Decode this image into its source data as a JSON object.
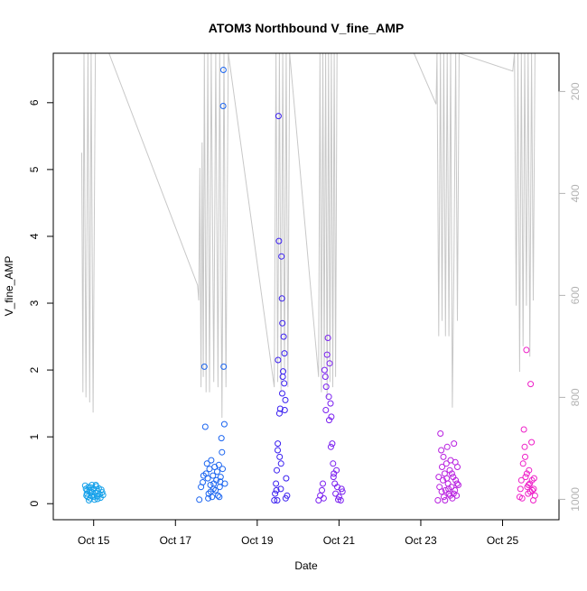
{
  "chart_data": {
    "type": "scatter",
    "title": "ATOM3 Northbound V_fine_AMP",
    "xlabel": "Date",
    "ylabel": "V_fine_AMP",
    "xlim": [
      "2015-10-14T00:18",
      "2015-10-26T09:07"
    ],
    "ylim": [
      -0.24,
      6.74
    ],
    "x_ticks": [
      "Oct 15",
      "Oct 17",
      "Oct 19",
      "Oct 21",
      "Oct 23",
      "Oct 25"
    ],
    "y_ticks": [
      "0",
      "1",
      "2",
      "3",
      "4",
      "5",
      "6"
    ],
    "grid": false,
    "right_axis": {
      "reversed": true,
      "lim": [
        1040,
        125
      ],
      "ticks": [
        "200",
        "400",
        "600",
        "800",
        "1000"
      ],
      "color": "#b3b3b3"
    },
    "marker": "open-circle",
    "color_ramp": [
      "#00a5ff",
      "#1f58ff",
      "#3a1ff2",
      "#7a1ff2",
      "#c21fe0",
      "#ff1fbe"
    ],
    "depth_line_color": "#c8c8c8",
    "series": [
      {
        "color": "#16a1ea",
        "points": [
          [
            "2015-10-14T19:00",
            0.27
          ],
          [
            "2015-10-14T19:30",
            0.22
          ],
          [
            "2015-10-14T20:00",
            0.15
          ],
          [
            "2015-10-14T20:30",
            0.1
          ],
          [
            "2015-10-14T21:00",
            0.25
          ],
          [
            "2015-10-14T21:30",
            0.2
          ],
          [
            "2015-10-14T22:00",
            0.08
          ],
          [
            "2015-10-14T22:30",
            0.18
          ],
          [
            "2015-10-14T23:00",
            0.28
          ],
          [
            "2015-10-14T23:30",
            0.12
          ],
          [
            "2015-10-15T00:00",
            0.22
          ],
          [
            "2015-10-15T00:30",
            0.06
          ],
          [
            "2015-10-15T01:00",
            0.16
          ],
          [
            "2015-10-15T01:30",
            0.26
          ],
          [
            "2015-10-15T02:00",
            0.11
          ],
          [
            "2015-10-15T02:30",
            0.19
          ],
          [
            "2015-10-15T03:00",
            0.23
          ],
          [
            "2015-10-15T03:30",
            0.14
          ],
          [
            "2015-10-15T04:00",
            0.09
          ],
          [
            "2015-10-15T04:30",
            0.21
          ],
          [
            "2015-10-15T05:00",
            0.17
          ],
          [
            "2015-10-15T05:30",
            0.13
          ],
          [
            "2015-10-14T19:45",
            0.12
          ],
          [
            "2015-10-14T20:15",
            0.2
          ],
          [
            "2015-10-14T21:15",
            0.05
          ],
          [
            "2015-10-14T22:15",
            0.24
          ],
          [
            "2015-10-14T23:15",
            0.17
          ],
          [
            "2015-10-15T00:15",
            0.1
          ],
          [
            "2015-10-15T01:15",
            0.28
          ],
          [
            "2015-10-15T02:15",
            0.07
          ]
        ]
      },
      {
        "color": "#1a64f0",
        "points": [
          [
            "2015-10-17T14:00",
            0.06
          ],
          [
            "2015-10-17T15:00",
            0.25
          ],
          [
            "2015-10-17T16:00",
            0.32
          ],
          [
            "2015-10-17T17:00",
            2.05
          ],
          [
            "2015-10-17T17:30",
            1.15
          ],
          [
            "2015-10-17T18:00",
            0.45
          ],
          [
            "2015-10-17T18:30",
            0.6
          ],
          [
            "2015-10-17T19:00",
            0.38
          ],
          [
            "2015-10-17T19:30",
            0.15
          ],
          [
            "2015-10-17T20:00",
            0.52
          ],
          [
            "2015-10-17T20:30",
            0.28
          ],
          [
            "2015-10-17T21:00",
            0.65
          ],
          [
            "2015-10-17T21:30",
            0.1
          ],
          [
            "2015-10-17T22:00",
            0.42
          ],
          [
            "2015-10-17T22:30",
            0.3
          ],
          [
            "2015-10-17T23:00",
            0.55
          ],
          [
            "2015-10-17T23:30",
            0.2
          ],
          [
            "2015-10-18T00:00",
            0.35
          ],
          [
            "2015-10-18T00:30",
            0.48
          ],
          [
            "2015-10-18T01:00",
            0.12
          ],
          [
            "2015-10-18T01:30",
            0.58
          ],
          [
            "2015-10-18T02:00",
            0.25
          ],
          [
            "2015-10-18T02:30",
            0.4
          ],
          [
            "2015-10-18T03:00",
            0.98
          ],
          [
            "2015-10-18T03:20",
            0.77
          ],
          [
            "2015-10-18T03:40",
            0.52
          ],
          [
            "2015-10-18T04:00",
            5.95
          ],
          [
            "2015-10-18T04:10",
            6.49
          ],
          [
            "2015-10-18T04:20",
            2.05
          ],
          [
            "2015-10-18T04:40",
            1.19
          ],
          [
            "2015-10-18T05:00",
            0.3
          ],
          [
            "2015-10-17T16:30",
            0.42
          ],
          [
            "2015-10-17T19:15",
            0.08
          ],
          [
            "2015-10-17T20:45",
            0.18
          ],
          [
            "2015-10-17T22:15",
            0.22
          ],
          [
            "2015-10-18T01:45",
            0.1
          ],
          [
            "2015-10-18T02:15",
            0.33
          ]
        ]
      },
      {
        "color": "#3a1ff0",
        "points": [
          [
            "2015-10-19T10:00",
            0.05
          ],
          [
            "2015-10-19T10:30",
            0.15
          ],
          [
            "2015-10-19T11:00",
            0.3
          ],
          [
            "2015-10-19T11:30",
            0.5
          ],
          [
            "2015-10-19T12:00",
            0.8
          ],
          [
            "2015-10-19T12:15",
            2.15
          ],
          [
            "2015-10-19T12:30",
            5.8
          ],
          [
            "2015-10-19T12:45",
            3.93
          ],
          [
            "2015-10-19T13:00",
            1.35
          ],
          [
            "2015-10-19T13:30",
            1.42
          ],
          [
            "2015-10-19T14:00",
            0.6
          ],
          [
            "2015-10-19T14:15",
            3.7
          ],
          [
            "2015-10-19T14:30",
            3.07
          ],
          [
            "2015-10-19T14:45",
            2.7
          ],
          [
            "2015-10-19T15:00",
            1.9
          ],
          [
            "2015-10-19T15:30",
            2.5
          ],
          [
            "2015-10-19T16:00",
            2.25
          ],
          [
            "2015-10-19T16:30",
            1.55
          ],
          [
            "2015-10-19T17:00",
            0.38
          ],
          [
            "2015-10-19T17:30",
            0.12
          ],
          [
            "2015-10-19T12:05",
            0.9
          ],
          [
            "2015-10-19T13:10",
            0.7
          ],
          [
            "2015-10-19T13:50",
            0.22
          ],
          [
            "2015-10-19T14:40",
            1.65
          ],
          [
            "2015-10-19T15:10",
            1.98
          ],
          [
            "2015-10-19T15:50",
            1.8
          ],
          [
            "2015-10-19T16:10",
            1.4
          ],
          [
            "2015-10-19T16:40",
            0.08
          ],
          [
            "2015-10-19T11:15",
            0.2
          ],
          [
            "2015-10-19T11:45",
            0.05
          ]
        ]
      },
      {
        "color": "#7a1ff0",
        "points": [
          [
            "2015-10-20T12:00",
            0.05
          ],
          [
            "2015-10-20T13:00",
            0.12
          ],
          [
            "2015-10-20T14:00",
            0.2
          ],
          [
            "2015-10-20T15:00",
            0.08
          ],
          [
            "2015-10-20T15:30",
            2.0
          ],
          [
            "2015-10-20T16:00",
            1.9
          ],
          [
            "2015-10-20T16:30",
            1.75
          ],
          [
            "2015-10-20T17:00",
            2.23
          ],
          [
            "2015-10-20T17:30",
            2.48
          ],
          [
            "2015-10-20T18:00",
            1.6
          ],
          [
            "2015-10-20T18:30",
            2.1
          ],
          [
            "2015-10-20T19:00",
            1.5
          ],
          [
            "2015-10-20T19:30",
            1.3
          ],
          [
            "2015-10-20T20:00",
            0.9
          ],
          [
            "2015-10-20T20:30",
            0.6
          ],
          [
            "2015-10-20T21:00",
            0.45
          ],
          [
            "2015-10-20T21:30",
            0.3
          ],
          [
            "2015-10-20T22:00",
            0.15
          ],
          [
            "2015-10-20T23:00",
            0.25
          ],
          [
            "2015-10-21T00:00",
            0.1
          ],
          [
            "2015-10-21T01:00",
            0.05
          ],
          [
            "2015-10-21T02:00",
            0.18
          ],
          [
            "2015-10-20T14:30",
            0.3
          ],
          [
            "2015-10-20T16:15",
            1.4
          ],
          [
            "2015-10-20T18:15",
            1.25
          ],
          [
            "2015-10-20T19:15",
            0.85
          ],
          [
            "2015-10-20T20:45",
            0.4
          ],
          [
            "2015-10-20T22:30",
            0.5
          ],
          [
            "2015-10-20T23:30",
            0.06
          ],
          [
            "2015-10-21T01:30",
            0.22
          ]
        ]
      },
      {
        "color": "#b81fe0",
        "points": [
          [
            "2015-10-23T10:00",
            0.05
          ],
          [
            "2015-10-23T11:00",
            0.25
          ],
          [
            "2015-10-23T11:30",
            1.05
          ],
          [
            "2015-10-23T12:00",
            0.8
          ],
          [
            "2015-10-23T12:30",
            0.55
          ],
          [
            "2015-10-23T13:00",
            0.35
          ],
          [
            "2015-10-23T13:30",
            0.1
          ],
          [
            "2015-10-23T14:00",
            0.45
          ],
          [
            "2015-10-23T14:30",
            0.2
          ],
          [
            "2015-10-23T15:00",
            0.6
          ],
          [
            "2015-10-23T15:30",
            0.85
          ],
          [
            "2015-10-23T16:00",
            0.3
          ],
          [
            "2015-10-23T16:30",
            0.15
          ],
          [
            "2015-10-23T17:00",
            0.5
          ],
          [
            "2015-10-23T17:30",
            0.65
          ],
          [
            "2015-10-23T18:00",
            0.25
          ],
          [
            "2015-10-23T18:30",
            0.08
          ],
          [
            "2015-10-23T19:00",
            0.4
          ],
          [
            "2015-10-23T19:30",
            0.9
          ],
          [
            "2015-10-23T20:00",
            0.2
          ],
          [
            "2015-10-23T20:30",
            0.35
          ],
          [
            "2015-10-23T21:00",
            0.12
          ],
          [
            "2015-10-23T21:30",
            0.55
          ],
          [
            "2015-10-23T22:00",
            0.28
          ],
          [
            "2015-10-23T10:30",
            0.4
          ],
          [
            "2015-10-23T12:15",
            0.18
          ],
          [
            "2015-10-23T13:15",
            0.7
          ],
          [
            "2015-10-23T14:15",
            0.05
          ],
          [
            "2015-10-23T15:15",
            0.38
          ],
          [
            "2015-10-23T16:15",
            0.22
          ],
          [
            "2015-10-23T17:15",
            0.12
          ],
          [
            "2015-10-23T18:15",
            0.45
          ],
          [
            "2015-10-23T19:15",
            0.15
          ],
          [
            "2015-10-23T20:15",
            0.62
          ],
          [
            "2015-10-23T21:15",
            0.3
          ]
        ]
      },
      {
        "color": "#ee1fc8",
        "points": [
          [
            "2015-10-25T10:00",
            0.1
          ],
          [
            "2015-10-25T11:00",
            0.35
          ],
          [
            "2015-10-25T12:00",
            0.6
          ],
          [
            "2015-10-25T12:30",
            1.11
          ],
          [
            "2015-10-25T13:00",
            0.85
          ],
          [
            "2015-10-25T13:30",
            0.4
          ],
          [
            "2015-10-25T14:00",
            2.3
          ],
          [
            "2015-10-25T14:30",
            0.25
          ],
          [
            "2015-10-25T15:00",
            0.15
          ],
          [
            "2015-10-25T15:30",
            0.5
          ],
          [
            "2015-10-25T16:00",
            0.3
          ],
          [
            "2015-10-25T16:30",
            1.79
          ],
          [
            "2015-10-25T17:00",
            0.92
          ],
          [
            "2015-10-25T17:30",
            0.2
          ],
          [
            "2015-10-25T18:00",
            0.05
          ],
          [
            "2015-10-25T18:30",
            0.38
          ],
          [
            "2015-10-25T19:00",
            0.12
          ],
          [
            "2015-10-25T10:30",
            0.22
          ],
          [
            "2015-10-25T11:30",
            0.08
          ],
          [
            "2015-10-25T13:15",
            0.7
          ],
          [
            "2015-10-25T14:15",
            0.45
          ],
          [
            "2015-10-25T15:15",
            0.28
          ],
          [
            "2015-10-25T16:15",
            0.18
          ],
          [
            "2015-10-25T17:15",
            0.35
          ],
          [
            "2015-10-25T18:15",
            0.22
          ]
        ]
      }
    ],
    "depth_trace": [
      [
        "2015-10-14T17:00",
        320
      ],
      [
        "2015-10-14T17:40",
        790
      ],
      [
        "2015-10-14T18:20",
        125
      ],
      [
        "2015-10-14T19:30",
        800
      ],
      [
        "2015-10-14T20:40",
        125
      ],
      [
        "2015-10-14T21:40",
        810
      ],
      [
        "2015-10-14T22:30",
        125
      ],
      [
        "2015-10-14T23:40",
        830
      ],
      [
        "2015-10-15T01:00",
        125
      ],
      [
        "2015-10-15T09:00",
        125
      ],
      [
        "2015-10-17T13:00",
        580
      ],
      [
        "2015-10-17T13:40",
        610
      ],
      [
        "2015-10-17T14:20",
        350
      ],
      [
        "2015-10-17T15:00",
        780
      ],
      [
        "2015-10-17T15:40",
        300
      ],
      [
        "2015-10-17T16:20",
        760
      ],
      [
        "2015-10-17T17:00",
        125
      ],
      [
        "2015-10-17T18:00",
        790
      ],
      [
        "2015-10-17T19:00",
        125
      ],
      [
        "2015-10-17T20:00",
        790
      ],
      [
        "2015-10-17T21:00",
        125
      ],
      [
        "2015-10-17T22:30",
        770
      ],
      [
        "2015-10-17T23:40",
        125
      ],
      [
        "2015-10-18T01:00",
        780
      ],
      [
        "2015-10-18T02:00",
        125
      ],
      [
        "2015-10-18T03:20",
        840
      ],
      [
        "2015-10-18T04:30",
        125
      ],
      [
        "2015-10-18T05:40",
        780
      ],
      [
        "2015-10-18T07:00",
        125
      ],
      [
        "2015-10-19T10:00",
        780
      ],
      [
        "2015-10-19T11:00",
        125
      ],
      [
        "2015-10-19T12:00",
        770
      ],
      [
        "2015-10-19T13:00",
        125
      ],
      [
        "2015-10-19T14:00",
        790
      ],
      [
        "2015-10-19T15:00",
        125
      ],
      [
        "2015-10-19T16:00",
        750
      ],
      [
        "2015-10-19T17:00",
        125
      ],
      [
        "2015-10-19T18:00",
        780
      ],
      [
        "2015-10-19T19:00",
        125
      ],
      [
        "2015-10-20T12:00",
        760
      ],
      [
        "2015-10-20T12:50",
        125
      ],
      [
        "2015-10-20T13:40",
        790
      ],
      [
        "2015-10-20T14:30",
        125
      ],
      [
        "2015-10-20T15:20",
        740
      ],
      [
        "2015-10-20T16:10",
        125
      ],
      [
        "2015-10-20T17:00",
        800
      ],
      [
        "2015-10-20T17:50",
        125
      ],
      [
        "2015-10-20T18:40",
        770
      ],
      [
        "2015-10-20T19:30",
        125
      ],
      [
        "2015-10-20T20:20",
        780
      ],
      [
        "2015-10-20T21:10",
        125
      ],
      [
        "2015-10-20T22:00",
        760
      ],
      [
        "2015-10-20T22:50",
        125
      ],
      [
        "2015-10-22T20:00",
        125
      ],
      [
        "2015-10-23T09:00",
        225
      ],
      [
        "2015-10-23T09:30",
        125
      ],
      [
        "2015-10-23T10:30",
        680
      ],
      [
        "2015-10-23T11:30",
        125
      ],
      [
        "2015-10-23T12:30",
        650
      ],
      [
        "2015-10-23T13:30",
        125
      ],
      [
        "2015-10-23T14:30",
        680
      ],
      [
        "2015-10-23T15:30",
        125
      ],
      [
        "2015-10-23T16:30",
        680
      ],
      [
        "2015-10-23T17:30",
        125
      ],
      [
        "2015-10-23T18:30",
        820
      ],
      [
        "2015-10-23T19:30",
        530
      ],
      [
        "2015-10-23T20:30",
        125
      ],
      [
        "2015-10-23T21:30",
        650
      ],
      [
        "2015-10-23T22:30",
        125
      ],
      [
        "2015-10-25T06:00",
        160
      ],
      [
        "2015-10-25T07:00",
        125
      ],
      [
        "2015-10-25T08:00",
        620
      ],
      [
        "2015-10-25T09:00",
        125
      ],
      [
        "2015-10-25T10:00",
        750
      ],
      [
        "2015-10-25T11:00",
        125
      ],
      [
        "2015-10-25T12:00",
        700
      ],
      [
        "2015-10-25T13:00",
        125
      ],
      [
        "2015-10-25T14:00",
        620
      ],
      [
        "2015-10-25T15:00",
        125
      ],
      [
        "2015-10-25T16:00",
        720
      ],
      [
        "2015-10-25T17:00",
        125
      ],
      [
        "2015-10-25T18:00",
        610
      ],
      [
        "2015-10-25T19:00",
        125
      ]
    ]
  }
}
